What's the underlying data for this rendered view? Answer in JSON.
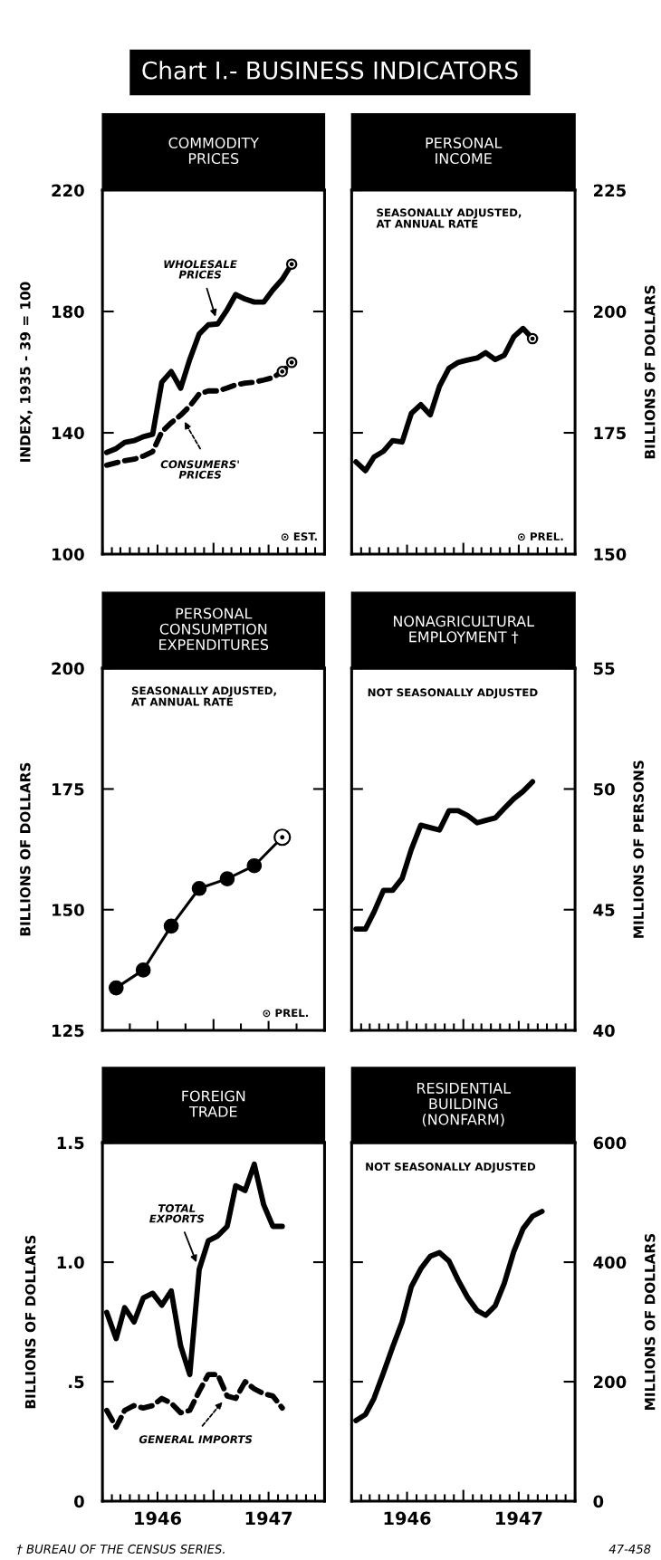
{
  "chart_data": [
    {
      "type": "line",
      "title": "COMMODITY\nPRICES",
      "ylabel": "INDEX, 1935 - 39 = 100",
      "annotations": [
        "Chart I.- BUSINESS INDICATORS",
        "⊙ EST."
      ],
      "x": [
        "1946-01-15",
        "1946-02-15",
        "1946-03-15",
        "1946-04-15",
        "1946-05-15",
        "1946-06-15",
        "1946-07-15",
        "1946-08-15",
        "1946-09-15",
        "1946-10-15",
        "1946-11-15",
        "1946-12-15",
        "1947-01-15",
        "1947-02-15",
        "1947-03-15",
        "1947-04-15",
        "1947-05-15",
        "1947-06-15",
        "1947-07-15",
        "1947-08-15",
        "1947-09-15"
      ],
      "series": [
        {
          "name": "WHOLESALE\nPRICES",
          "color": "#000000",
          "values": [
            133.5,
            134.8,
            136.8,
            137.4,
            138.7,
            139.5,
            156.7,
            160.2,
            154.7,
            164.2,
            172.6,
            175.6,
            175.9,
            180.6,
            185.6,
            184.1,
            183.1,
            183.1,
            187.1,
            190.6,
            195.6
          ]
        },
        {
          "name": "CONSUMERS'\nPRICES",
          "color": "#000000",
          "line_style": "dashed",
          "values": [
            129.3,
            130.1,
            130.8,
            131.3,
            132.3,
            133.8,
            140.3,
            143.3,
            145.8,
            148.8,
            152.8,
            153.8,
            153.8,
            154.8,
            155.8,
            156.4,
            156.7,
            157.4,
            158.2,
            160.2,
            163.2
          ]
        },
        {
          "type": "scatter",
          "marker": "circle",
          "color": "#000000",
          "x": [
            "1947-09-15",
            "1947-08-15",
            "1947-09-15"
          ],
          "values": [
            195.6,
            160.2,
            163.2
          ]
        }
      ],
      "xlim": [
        "1946-01-01",
        "1948-01-01"
      ],
      "xticks": [
        {
          "value": "1946-01-01",
          "label": null
        },
        {
          "value": "1946-02-01",
          "label": null
        },
        {
          "value": "1946-03-01",
          "label": null
        },
        {
          "value": "1946-04-01",
          "label": null
        },
        {
          "value": "1946-05-01",
          "label": null
        },
        {
          "value": "1946-06-01",
          "label": null
        },
        {
          "value": "1946-07-01",
          "label": null
        },
        {
          "value": "1946-08-01",
          "label": null
        },
        {
          "value": "1946-09-01",
          "label": null
        },
        {
          "value": "1946-10-01",
          "label": null
        },
        {
          "value": "1946-11-01",
          "label": null
        },
        {
          "value": "1946-12-01",
          "label": null
        },
        {
          "value": "1947-01-01",
          "label": null
        },
        {
          "value": "1947-02-01",
          "label": null
        },
        {
          "value": "1947-03-01",
          "label": null
        },
        {
          "value": "1947-04-01",
          "label": null
        },
        {
          "value": "1947-05-01",
          "label": null
        },
        {
          "value": "1947-06-01",
          "label": null
        },
        {
          "value": "1947-07-01",
          "label": null
        },
        {
          "value": "1947-08-01",
          "label": null
        },
        {
          "value": "1947-09-01",
          "label": null
        },
        {
          "value": "1947-10-01",
          "label": null
        },
        {
          "value": "1947-11-01",
          "label": null
        },
        {
          "value": "1947-12-01",
          "label": null
        },
        {
          "value": "1948-01-01",
          "label": null
        }
      ],
      "ylim": [
        100,
        220
      ],
      "yticks": [
        100,
        140,
        180,
        220
      ],
      "tick_labels": "y"
    },
    {
      "type": "line",
      "title": "PERSONAL\nINCOME",
      "ylabel": "BILLIONS OF DOLLARS",
      "annotations": [
        "SEASONALLY ADJUSTED,\nAT ANNUAL RATE",
        "⊙ PREL."
      ],
      "x": [
        "1946-01-15",
        "1946-02-15",
        "1946-03-15",
        "1946-04-15",
        "1946-05-15",
        "1946-06-15",
        "1946-07-15",
        "1946-08-15",
        "1946-09-15",
        "1946-10-15",
        "1946-11-15",
        "1946-12-15",
        "1947-01-15",
        "1947-02-15",
        "1947-03-15",
        "1947-04-15",
        "1947-05-15",
        "1947-06-15",
        "1947-07-15",
        "1947-08-15"
      ],
      "series": [
        {
          "color": "#000000",
          "values": [
            169.0,
            167.2,
            170.0,
            171.2,
            173.4,
            173.1,
            179.0,
            180.8,
            178.7,
            184.6,
            188.3,
            189.5,
            190.0,
            190.4,
            191.5,
            190.1,
            191.0,
            194.8,
            196.5,
            194.4
          ]
        },
        {
          "type": "scatter",
          "marker": "circle",
          "color": "#000000",
          "x": [
            "1947-08-15"
          ],
          "values": [
            194.4
          ]
        }
      ],
      "xlim": [
        "1946-01-01",
        "1948-01-01"
      ],
      "xticks": [
        {
          "value": "1946-01-01",
          "label": null
        },
        {
          "value": "1946-02-01",
          "label": null
        },
        {
          "value": "1946-03-01",
          "label": null
        },
        {
          "value": "1946-04-01",
          "label": null
        },
        {
          "value": "1946-05-01",
          "label": null
        },
        {
          "value": "1946-06-01",
          "label": null
        },
        {
          "value": "1946-07-01",
          "label": null
        },
        {
          "value": "1946-08-01",
          "label": null
        },
        {
          "value": "1946-09-01",
          "label": null
        },
        {
          "value": "1946-10-01",
          "label": null
        },
        {
          "value": "1946-11-01",
          "label": null
        },
        {
          "value": "1946-12-01",
          "label": null
        },
        {
          "value": "1947-01-01",
          "label": null
        },
        {
          "value": "1947-02-01",
          "label": null
        },
        {
          "value": "1947-03-01",
          "label": null
        },
        {
          "value": "1947-04-01",
          "label": null
        },
        {
          "value": "1947-05-01",
          "label": null
        },
        {
          "value": "1947-06-01",
          "label": null
        },
        {
          "value": "1947-07-01",
          "label": null
        },
        {
          "value": "1947-08-01",
          "label": null
        },
        {
          "value": "1947-09-01",
          "label": null
        },
        {
          "value": "1947-10-01",
          "label": null
        },
        {
          "value": "1947-11-01",
          "label": null
        },
        {
          "value": "1947-12-01",
          "label": null
        },
        {
          "value": "1948-01-01",
          "label": null
        }
      ],
      "ylim": [
        150,
        225
      ],
      "yticks": [
        150,
        175,
        200,
        225
      ],
      "tick_labels": "y"
    },
    {
      "type": "line",
      "title": "PERSONAL\nCONSUMPTION\nEXPENDITURES",
      "ylabel": "BILLIONS OF DOLLARS",
      "annotations": [
        "SEASONALLY ADJUSTED,\nAT ANNUAL RATE",
        "⊙ PREL."
      ],
      "x": [
        "1946-02-15",
        "1946-05-15",
        "1946-08-15",
        "1946-11-15",
        "1947-02-15",
        "1947-05-15",
        "1947-08-15"
      ],
      "series": [
        {
          "color": "#000000",
          "marker": "circle",
          "values": [
            133.8,
            137.5,
            146.6,
            154.4,
            156.4,
            159.1,
            165.0
          ]
        },
        {
          "type": "scatter",
          "marker": "circle",
          "color": "#000000",
          "x": [
            "1947-08-15"
          ],
          "values": [
            165.0
          ]
        }
      ],
      "xlim": [
        "1946-01-01",
        "1948-01-01"
      ],
      "xticks": [
        {
          "value": "1946-04-01",
          "label": null
        },
        {
          "value": "1946-07-01",
          "label": null
        },
        {
          "value": "1946-10-01",
          "label": null
        },
        {
          "value": "1947-01-01",
          "label": null
        },
        {
          "value": "1947-04-01",
          "label": null
        },
        {
          "value": "1947-07-01",
          "label": null
        },
        {
          "value": "1947-10-01",
          "label": null
        }
      ],
      "ylim": [
        125,
        200
      ],
      "yticks": [
        125,
        150,
        175,
        200
      ],
      "tick_labels": "y"
    },
    {
      "type": "line",
      "title": "NONAGRICULTURAL\nEMPLOYMENT †",
      "ylabel": "MILLIONS OF PERSONS",
      "annotations": [
        "NOT SEASONALLY ADJUSTED"
      ],
      "x": [
        "1946-01-15",
        "1946-02-15",
        "1946-03-15",
        "1946-04-15",
        "1946-05-15",
        "1946-06-15",
        "1946-07-15",
        "1946-08-15",
        "1946-09-15",
        "1946-10-15",
        "1946-11-15",
        "1946-12-15",
        "1947-01-15",
        "1947-02-15",
        "1947-03-15",
        "1947-04-15",
        "1947-05-15",
        "1947-06-15",
        "1947-07-15",
        "1947-08-15"
      ],
      "series": [
        {
          "color": "#000000",
          "values": [
            44.2,
            44.2,
            44.9,
            45.8,
            45.8,
            46.3,
            47.5,
            48.5,
            48.4,
            48.3,
            49.1,
            49.1,
            48.9,
            48.6,
            48.7,
            48.8,
            49.2,
            49.6,
            49.9,
            50.3
          ]
        }
      ],
      "xlim": [
        "1946-01-01",
        "1948-01-01"
      ],
      "xticks": [
        {
          "value": "1946-01-01",
          "label": null
        },
        {
          "value": "1946-02-01",
          "label": null
        },
        {
          "value": "1946-03-01",
          "label": null
        },
        {
          "value": "1946-04-01",
          "label": null
        },
        {
          "value": "1946-05-01",
          "label": null
        },
        {
          "value": "1946-06-01",
          "label": null
        },
        {
          "value": "1946-07-01",
          "label": null
        },
        {
          "value": "1946-08-01",
          "label": null
        },
        {
          "value": "1946-09-01",
          "label": null
        },
        {
          "value": "1946-10-01",
          "label": null
        },
        {
          "value": "1946-11-01",
          "label": null
        },
        {
          "value": "1946-12-01",
          "label": null
        },
        {
          "value": "1947-01-01",
          "label": null
        },
        {
          "value": "1947-02-01",
          "label": null
        },
        {
          "value": "1947-03-01",
          "label": null
        },
        {
          "value": "1947-04-01",
          "label": null
        },
        {
          "value": "1947-05-01",
          "label": null
        },
        {
          "value": "1947-06-01",
          "label": null
        },
        {
          "value": "1947-07-01",
          "label": null
        },
        {
          "value": "1947-08-01",
          "label": null
        },
        {
          "value": "1947-09-01",
          "label": null
        },
        {
          "value": "1947-10-01",
          "label": null
        },
        {
          "value": "1947-11-01",
          "label": null
        },
        {
          "value": "1947-12-01",
          "label": null
        },
        {
          "value": "1948-01-01",
          "label": null
        }
      ],
      "ylim": [
        40,
        55
      ],
      "yticks": [
        40,
        45,
        50,
        55
      ],
      "tick_labels": "y"
    },
    {
      "type": "line",
      "title": "FOREIGN\nTRADE",
      "ylabel": "BILLIONS OF DOLLARS",
      "annotations": [
        "† BUREAU OF THE CENSUS SERIES."
      ],
      "x": [
        "1946-01-15",
        "1946-02-15",
        "1946-03-15",
        "1946-04-15",
        "1946-05-15",
        "1946-06-15",
        "1946-07-15",
        "1946-08-15",
        "1946-09-15",
        "1946-10-15",
        "1946-11-15",
        "1946-12-15",
        "1947-01-15",
        "1947-02-15",
        "1947-03-15",
        "1947-04-15",
        "1947-05-15",
        "1947-06-15",
        "1947-07-15",
        "1947-08-15"
      ],
      "series": [
        {
          "name": "TOTAL\nEXPORTS",
          "color": "#000000",
          "values": [
            0.79,
            0.68,
            0.81,
            0.75,
            0.85,
            0.87,
            0.82,
            0.88,
            0.65,
            0.53,
            0.97,
            1.09,
            1.11,
            1.15,
            1.32,
            1.3,
            1.41,
            1.24,
            1.15,
            1.15
          ]
        },
        {
          "name": "GENERAL IMPORTS",
          "color": "#000000",
          "line_style": "dashed",
          "values": [
            0.38,
            0.31,
            0.38,
            0.4,
            0.39,
            0.4,
            0.43,
            0.41,
            0.37,
            0.38,
            0.46,
            0.53,
            0.53,
            0.44,
            0.43,
            0.5,
            0.47,
            0.45,
            0.44,
            0.39
          ]
        }
      ],
      "xlim": [
        "1946-01-01",
        "1948-01-01"
      ],
      "xticks": [
        {
          "value": "1946-01-01",
          "label": null
        },
        {
          "value": "1946-02-01",
          "label": null
        },
        {
          "value": "1946-03-01",
          "label": null
        },
        {
          "value": "1946-04-01",
          "label": null
        },
        {
          "value": "1946-05-01",
          "label": null
        },
        {
          "value": "1946-06-01",
          "label": null
        },
        {
          "value": "1946-07-01",
          "label": "1946"
        },
        {
          "value": "1946-08-01",
          "label": null
        },
        {
          "value": "1946-09-01",
          "label": null
        },
        {
          "value": "1946-10-01",
          "label": null
        },
        {
          "value": "1946-11-01",
          "label": null
        },
        {
          "value": "1946-12-01",
          "label": null
        },
        {
          "value": "1947-01-01",
          "label": null
        },
        {
          "value": "1947-02-01",
          "label": null
        },
        {
          "value": "1947-03-01",
          "label": null
        },
        {
          "value": "1947-04-01",
          "label": null
        },
        {
          "value": "1947-05-01",
          "label": null
        },
        {
          "value": "1947-06-01",
          "label": null
        },
        {
          "value": "1947-07-01",
          "label": "1947"
        },
        {
          "value": "1947-08-01",
          "label": null
        },
        {
          "value": "1947-09-01",
          "label": null
        },
        {
          "value": "1947-10-01",
          "label": null
        },
        {
          "value": "1947-11-01",
          "label": null
        },
        {
          "value": "1947-12-01",
          "label": null
        },
        {
          "value": "1948-01-01",
          "label": null
        }
      ],
      "ylim": [
        0,
        1.5
      ],
      "yticks": [
        0,
        {
          "value": 0.5,
          "label": ".5"
        },
        {
          "value": 1.0,
          "label": "1.0"
        },
        1.5
      ]
    },
    {
      "type": "line",
      "title": "RESIDENTIAL\nBUILDING\n(NONFARM)",
      "ylabel": "MILLIONS OF DOLLARS",
      "annotations": [
        "NOT SEASONALLY ADJUSTED",
        "47-458"
      ],
      "x": [
        "1946-01-15",
        "1946-02-15",
        "1946-03-15",
        "1946-04-15",
        "1946-05-15",
        "1946-06-15",
        "1946-07-15",
        "1946-08-15",
        "1946-09-15",
        "1946-10-15",
        "1946-11-15",
        "1946-12-15",
        "1947-01-15",
        "1947-02-15",
        "1947-03-15",
        "1947-04-15",
        "1947-05-15",
        "1947-06-15",
        "1947-07-15",
        "1947-08-15",
        "1947-09-15"
      ],
      "series": [
        {
          "color": "#000000",
          "values": [
            135,
            145,
            172,
            215,
            258,
            300,
            359,
            389,
            410,
            416,
            402,
            370,
            341,
            319,
            311,
            327,
            365,
            418,
            456,
            477,
            485
          ]
        }
      ],
      "xlim": [
        "1946-01-01",
        "1948-01-01"
      ],
      "xticks": [
        {
          "value": "1946-01-01",
          "label": null
        },
        {
          "value": "1946-02-01",
          "label": null
        },
        {
          "value": "1946-03-01",
          "label": null
        },
        {
          "value": "1946-04-01",
          "label": null
        },
        {
          "value": "1946-05-01",
          "label": null
        },
        {
          "value": "1946-06-01",
          "label": null
        },
        {
          "value": "1946-07-01",
          "label": "1946"
        },
        {
          "value": "1946-08-01",
          "label": null
        },
        {
          "value": "1946-09-01",
          "label": null
        },
        {
          "value": "1946-10-01",
          "label": null
        },
        {
          "value": "1946-11-01",
          "label": null
        },
        {
          "value": "1946-12-01",
          "label": null
        },
        {
          "value": "1947-01-01",
          "label": null
        },
        {
          "value": "1947-02-01",
          "label": null
        },
        {
          "value": "1947-03-01",
          "label": null
        },
        {
          "value": "1947-04-01",
          "label": null
        },
        {
          "value": "1947-05-01",
          "label": null
        },
        {
          "value": "1947-06-01",
          "label": null
        },
        {
          "value": "1947-07-01",
          "label": "1947"
        },
        {
          "value": "1947-08-01",
          "label": null
        },
        {
          "value": "1947-09-01",
          "label": null
        },
        {
          "value": "1947-10-01",
          "label": null
        },
        {
          "value": "1947-11-01",
          "label": null
        },
        {
          "value": "1947-12-01",
          "label": null
        },
        {
          "value": "1948-01-01",
          "label": null
        }
      ],
      "ylim": [
        0,
        600
      ],
      "yticks": [
        0,
        200,
        400,
        600
      ]
    }
  ]
}
